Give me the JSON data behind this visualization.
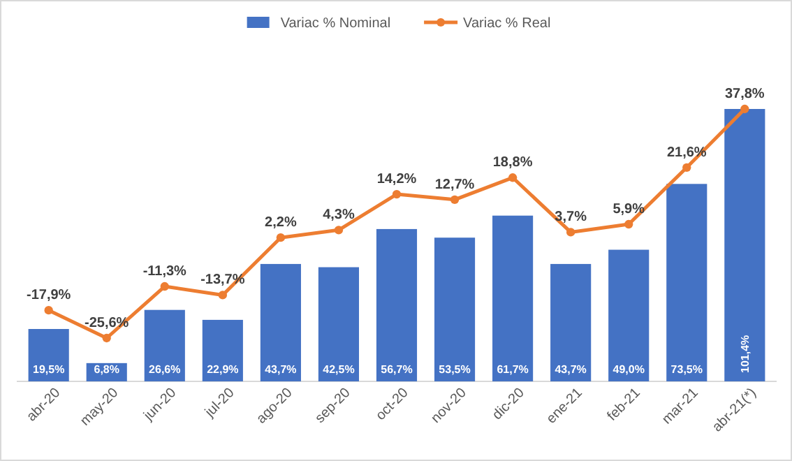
{
  "chart_data": {
    "type": "bar",
    "categories": [
      "abr-20",
      "may-20",
      "jun-20",
      "jul-20",
      "ago-20",
      "sep-20",
      "oct-20",
      "nov-20",
      "dic-20",
      "ene-21",
      "feb-21",
      "mar-21",
      "abr-21(*)"
    ],
    "legend": "top",
    "series": [
      {
        "name": "Variac % Nominal",
        "color": "#4472c4",
        "values": [
          19.5,
          6.8,
          26.6,
          22.9,
          43.7,
          42.5,
          56.7,
          53.5,
          61.7,
          43.7,
          49.0,
          73.5,
          101.4
        ],
        "value_labels": [
          "19,5%",
          "6,8%",
          "26,6%",
          "22,9%",
          "43,7%",
          "42,5%",
          "56,7%",
          "53,5%",
          "61,7%",
          "43,7%",
          "49,0%",
          "73,5%",
          "101,4%"
        ]
      },
      {
        "name": "Variac % Real",
        "type": "line",
        "axis": "y2",
        "color": "#ed7d31",
        "marker": "circle",
        "values": [
          -17.9,
          -25.6,
          -11.3,
          -13.7,
          2.2,
          4.3,
          14.2,
          12.7,
          18.8,
          3.7,
          5.9,
          21.6,
          37.8
        ],
        "value_labels": [
          "-17,9%",
          "-25,6%",
          "-11,3%",
          "-13,7%",
          "2,2%",
          "4,3%",
          "14,2%",
          "12,7%",
          "18,8%",
          "3,7%",
          "5,9%",
          "21,6%",
          "37,8%"
        ]
      }
    ]
  }
}
